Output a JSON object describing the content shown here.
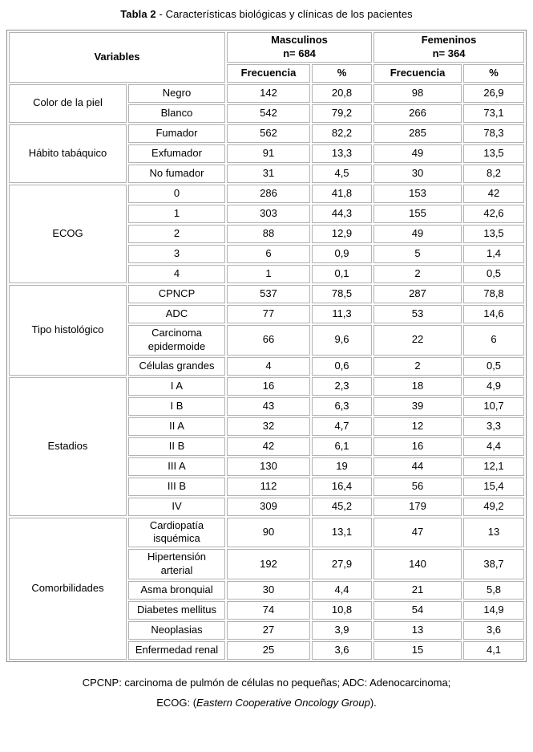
{
  "title": {
    "bold": "Tabla 2",
    "rest": " - Características biológicas y clínicas de los pacientes"
  },
  "table": {
    "variables_header": "Variables",
    "groups": [
      {
        "label": "Masculinos",
        "n": "n= 684"
      },
      {
        "label": "Femeninos",
        "n": "n= 364"
      }
    ],
    "subheaders": [
      "Frecuencia",
      "%",
      "Frecuencia",
      "%"
    ],
    "sections": [
      {
        "category": "Color de la piel",
        "rows": [
          {
            "label": "Negro",
            "values": [
              "142",
              "20,8",
              "98",
              "26,9"
            ]
          },
          {
            "label": "Blanco",
            "values": [
              "542",
              "79,2",
              "266",
              "73,1"
            ]
          }
        ]
      },
      {
        "category": "Hábito tabáquico",
        "rows": [
          {
            "label": "Fumador",
            "values": [
              "562",
              "82,2",
              "285",
              "78,3"
            ]
          },
          {
            "label": "Exfumador",
            "values": [
              "91",
              "13,3",
              "49",
              "13,5"
            ]
          },
          {
            "label": "No fumador",
            "values": [
              "31",
              "4,5",
              "30",
              "8,2"
            ]
          }
        ]
      },
      {
        "category": "ECOG",
        "rows": [
          {
            "label": "0",
            "values": [
              "286",
              "41,8",
              "153",
              "42"
            ]
          },
          {
            "label": "1",
            "values": [
              "303",
              "44,3",
              "155",
              "42,6"
            ]
          },
          {
            "label": "2",
            "values": [
              "88",
              "12,9",
              "49",
              "13,5"
            ]
          },
          {
            "label": "3",
            "values": [
              "6",
              "0,9",
              "5",
              "1,4"
            ]
          },
          {
            "label": "4",
            "values": [
              "1",
              "0,1",
              "2",
              "0,5"
            ]
          }
        ]
      },
      {
        "category": "Tipo histológico",
        "rows": [
          {
            "label": "CPNCP",
            "values": [
              "537",
              "78,5",
              "287",
              "78,8"
            ]
          },
          {
            "label": "ADC",
            "values": [
              "77",
              "11,3",
              "53",
              "14,6"
            ]
          },
          {
            "label": "Carcinoma epidermoide",
            "values": [
              "66",
              "9,6",
              "22",
              "6"
            ]
          },
          {
            "label": "Células grandes",
            "values": [
              "4",
              "0,6",
              "2",
              "0,5"
            ]
          }
        ]
      },
      {
        "category": "Estadios",
        "rows": [
          {
            "label": "I A",
            "values": [
              "16",
              "2,3",
              "18",
              "4,9"
            ]
          },
          {
            "label": "I B",
            "values": [
              "43",
              "6,3",
              "39",
              "10,7"
            ]
          },
          {
            "label": "II A",
            "values": [
              "32",
              "4,7",
              "12",
              "3,3"
            ]
          },
          {
            "label": "II B",
            "values": [
              "42",
              "6,1",
              "16",
              "4,4"
            ]
          },
          {
            "label": "III A",
            "values": [
              "130",
              "19",
              "44",
              "12,1"
            ]
          },
          {
            "label": "III B",
            "values": [
              "112",
              "16,4",
              "56",
              "15,4"
            ]
          },
          {
            "label": "IV",
            "values": [
              "309",
              "45,2",
              "179",
              "49,2"
            ]
          }
        ]
      },
      {
        "category": "Comorbilidades",
        "rows": [
          {
            "label": "Cardiopatía isquémica",
            "values": [
              "90",
              "13,1",
              "47",
              "13"
            ]
          },
          {
            "label": "Hipertensión arterial",
            "values": [
              "192",
              "27,9",
              "140",
              "38,7"
            ]
          },
          {
            "label": "Asma bronquial",
            "values": [
              "30",
              "4,4",
              "21",
              "5,8"
            ]
          },
          {
            "label": "Diabetes mellitus",
            "values": [
              "74",
              "10,8",
              "54",
              "14,9"
            ]
          },
          {
            "label": "Neoplasias",
            "values": [
              "27",
              "3,9",
              "13",
              "3,6"
            ]
          },
          {
            "label": "Enfermedad renal",
            "values": [
              "25",
              "3,6",
              "15",
              "4,1"
            ]
          }
        ]
      }
    ]
  },
  "footnote": {
    "line1": "CPCNP: carcinoma de pulmón de células no pequeñas; ADC: Adenocarcinoma;",
    "line2_prefix": "ECOG: (",
    "line2_italic": "Eastern Cooperative Oncology Group",
    "line2_suffix": ")."
  },
  "colors": {
    "cell_border": "#b2b2b2",
    "outer_border": "#8c8c8c",
    "text": "#000000",
    "background": "#ffffff"
  }
}
